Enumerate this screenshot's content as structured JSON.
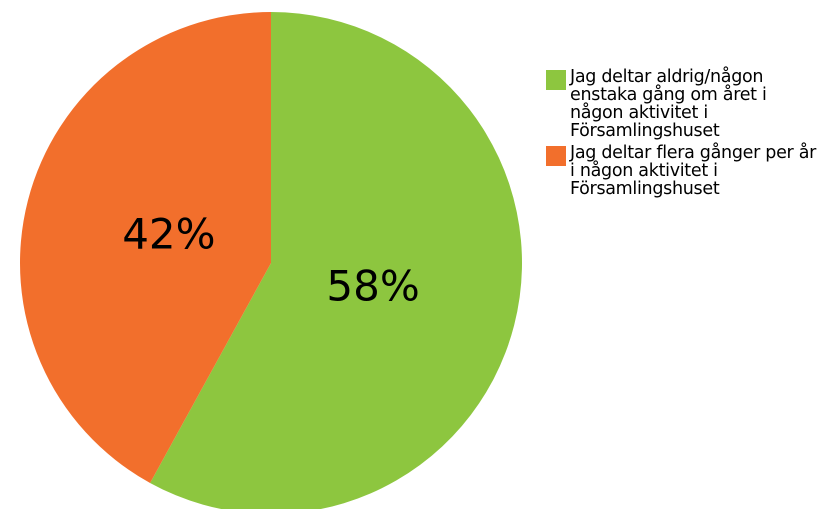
{
  "chart_data": {
    "type": "pie",
    "labels": [
      "Jag deltar aldrig/någon enstaka gång om året i någon aktivitet i Församlingshuset",
      "Jag deltar flera gånger per år i någon aktivitet i Församlingshuset"
    ],
    "values": [
      58,
      42
    ],
    "value_labels": [
      "58%",
      "42%"
    ],
    "colors": [
      "#8dc63f",
      "#f26f2c"
    ]
  }
}
